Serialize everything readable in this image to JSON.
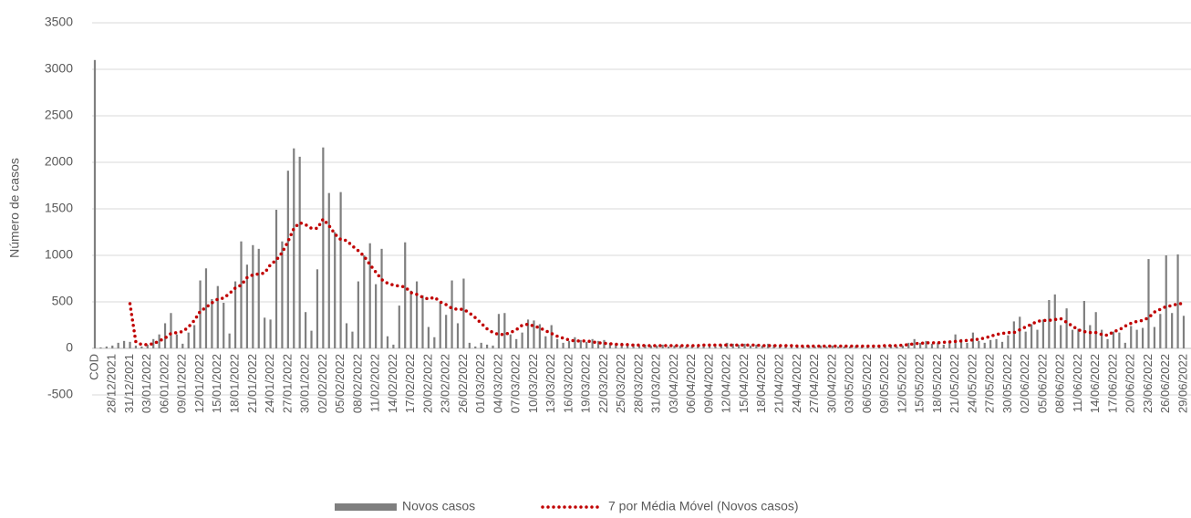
{
  "chart_data": {
    "type": "bar_line",
    "y_axis_label": "Número de casos",
    "categories": [
      "COD",
      null,
      null,
      "28/12/2021",
      null,
      null,
      "31/12/2021",
      null,
      null,
      "03/01/2022",
      null,
      null,
      "06/01/2022",
      null,
      null,
      "09/01/2022",
      null,
      null,
      "12/01/2022",
      null,
      null,
      "15/01/2022",
      null,
      null,
      "18/01/2022",
      null,
      null,
      "21/01/2022",
      null,
      null,
      "24/01/2022",
      null,
      null,
      "27/01/2022",
      null,
      null,
      "30/01/2022",
      null,
      null,
      "02/02/2022",
      null,
      null,
      "05/02/2022",
      null,
      null,
      "08/02/2022",
      null,
      null,
      "11/02/2022",
      null,
      null,
      "14/02/2022",
      null,
      null,
      "17/02/2022",
      null,
      null,
      "20/02/2022",
      null,
      null,
      "23/02/2022",
      null,
      null,
      "26/02/2022",
      null,
      null,
      "01/03/2022",
      null,
      null,
      "04/03/2022",
      null,
      null,
      "07/03/2022",
      null,
      null,
      "10/03/2022",
      null,
      null,
      "13/03/2022",
      null,
      null,
      "16/03/2022",
      null,
      null,
      "19/03/2022",
      null,
      null,
      "22/03/2022",
      null,
      null,
      "25/03/2022",
      null,
      null,
      "28/03/2022",
      null,
      null,
      "31/03/2022",
      null,
      null,
      "03/04/2022",
      null,
      null,
      "06/04/2022",
      null,
      null,
      "09/04/2022",
      null,
      null,
      "12/04/2022",
      null,
      null,
      "15/04/2022",
      null,
      null,
      "18/04/2022",
      null,
      null,
      "21/04/2022",
      null,
      null,
      "24/04/2022",
      null,
      null,
      "27/04/2022",
      null,
      null,
      "30/04/2022",
      null,
      null,
      "03/05/2022",
      null,
      null,
      "06/05/2022",
      null,
      null,
      "09/05/2022",
      null,
      null,
      "12/05/2022",
      null,
      null,
      "15/05/2022",
      null,
      null,
      "18/05/2022",
      null,
      null,
      "21/05/2022",
      null,
      null,
      "24/05/2022",
      null,
      null,
      "27/05/2022",
      null,
      null,
      "30/05/2022",
      null,
      null,
      "02/06/2022",
      null,
      null,
      "05/06/2022",
      null,
      null,
      "08/06/2022",
      null,
      null,
      "11/06/2022",
      null,
      null,
      "14/06/2022",
      null,
      null,
      "17/06/2022",
      null,
      null,
      "20/06/2022",
      null,
      null,
      "23/06/2022",
      null,
      null,
      "26/06/2022",
      null,
      null,
      "29/06/2022"
    ],
    "series": [
      {
        "name": "Novos casos",
        "type": "bar",
        "color": "#7f7f7f",
        "values": [
          3100,
          10,
          20,
          30,
          60,
          80,
          70,
          30,
          20,
          40,
          100,
          150,
          270,
          380,
          150,
          50,
          170,
          250,
          730,
          860,
          530,
          670,
          490,
          160,
          720,
          1150,
          900,
          1110,
          1070,
          330,
          310,
          1490,
          1150,
          1910,
          2150,
          2060,
          390,
          190,
          850,
          2160,
          1670,
          1250,
          1680,
          270,
          180,
          720,
          1000,
          1130,
          690,
          1070,
          130,
          40,
          460,
          1140,
          620,
          720,
          570,
          230,
          120,
          500,
          360,
          730,
          270,
          750,
          60,
          20,
          60,
          40,
          30,
          370,
          380,
          150,
          100,
          170,
          310,
          300,
          260,
          130,
          250,
          100,
          60,
          80,
          120,
          90,
          70,
          100,
          80,
          90,
          60,
          50,
          60,
          40,
          50,
          30,
          40,
          30,
          30,
          40,
          20,
          30,
          30,
          20,
          30,
          20,
          30,
          30,
          20,
          40,
          60,
          50,
          40,
          50,
          30,
          40,
          30,
          50,
          40,
          30,
          30,
          20,
          30,
          20,
          30,
          20,
          30,
          20,
          30,
          20,
          20,
          20,
          30,
          20,
          20,
          30,
          20,
          30,
          40,
          20,
          30,
          60,
          100,
          60,
          80,
          50,
          60,
          40,
          70,
          150,
          100,
          60,
          170,
          80,
          60,
          90,
          100,
          70,
          140,
          290,
          340,
          180,
          260,
          200,
          310,
          520,
          580,
          250,
          430,
          200,
          210,
          510,
          250,
          390,
          200,
          100,
          180,
          170,
          60,
          240,
          200,
          220,
          960,
          230,
          370,
          1000,
          380,
          1010,
          350
        ]
      },
      {
        "name": "7 por Média Móvel (Novos casos)",
        "type": "line",
        "color": "#c00000",
        "values": [
          null,
          null,
          null,
          null,
          null,
          null,
          480,
          70,
          40,
          40,
          50,
          80,
          110,
          160,
          170,
          180,
          230,
          300,
          400,
          440,
          490,
          530,
          540,
          590,
          650,
          680,
          760,
          790,
          800,
          810,
          900,
          950,
          1030,
          1150,
          1290,
          1350,
          1330,
          1290,
          1290,
          1390,
          1320,
          1230,
          1170,
          1160,
          1100,
          1050,
          990,
          900,
          820,
          740,
          700,
          680,
          670,
          660,
          600,
          580,
          550,
          530,
          550,
          500,
          470,
          430,
          420,
          420,
          380,
          330,
          270,
          210,
          170,
          150,
          150,
          170,
          200,
          250,
          260,
          240,
          220,
          190,
          160,
          130,
          110,
          90,
          80,
          80,
          80,
          70,
          60,
          55,
          50,
          45,
          40,
          40,
          35,
          35,
          30,
          30,
          30,
          30,
          30,
          30,
          30,
          30,
          30,
          30,
          35,
          35,
          35,
          35,
          35,
          35,
          35,
          35,
          35,
          35,
          30,
          30,
          30,
          30,
          30,
          30,
          25,
          25,
          25,
          25,
          25,
          25,
          25,
          25,
          25,
          25,
          25,
          25,
          25,
          25,
          25,
          30,
          30,
          30,
          35,
          40,
          50,
          55,
          60,
          60,
          60,
          65,
          70,
          75,
          80,
          85,
          90,
          100,
          110,
          130,
          150,
          160,
          170,
          170,
          200,
          230,
          260,
          290,
          300,
          300,
          310,
          320,
          280,
          240,
          200,
          180,
          170,
          170,
          150,
          140,
          180,
          200,
          240,
          270,
          290,
          300,
          330,
          390,
          420,
          450,
          460,
          480,
          480
        ]
      }
    ],
    "ylim": [
      -500,
      3500
    ],
    "yticks": [
      -500,
      0,
      500,
      1000,
      1500,
      2000,
      2500,
      3000,
      3500
    ],
    "grid": true,
    "legend": "bottom"
  }
}
